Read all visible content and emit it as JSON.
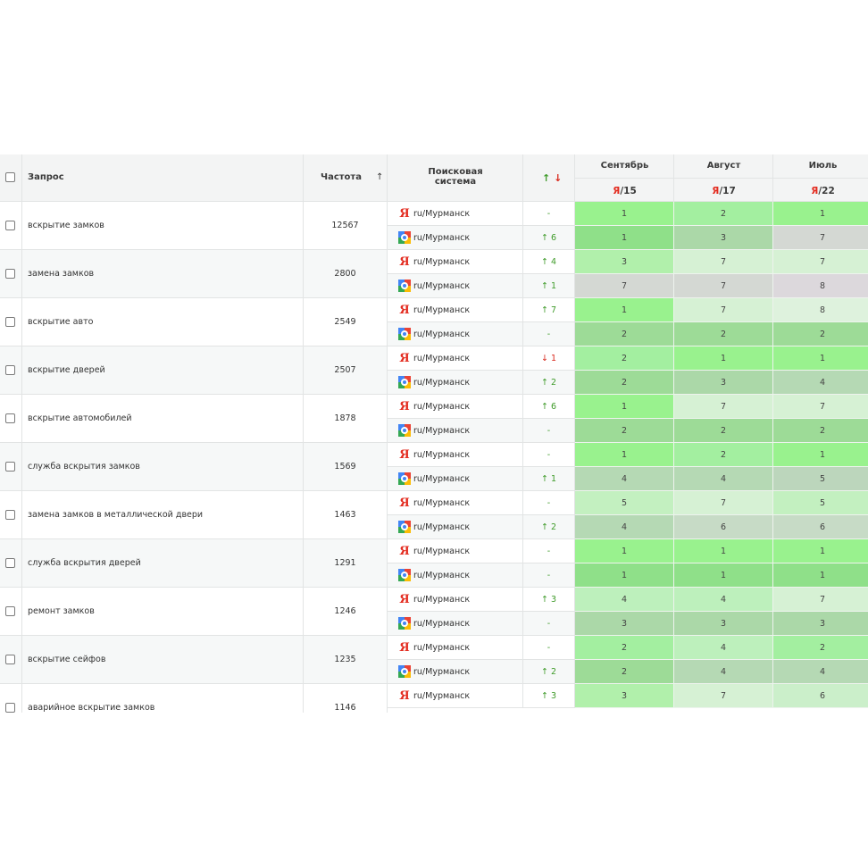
{
  "header": {
    "query": "Запрос",
    "frequency": "Частота",
    "freq_sort_arrow": "↑",
    "search_engine": "Поисковая система",
    "change_up": "↑",
    "change_down": "↓",
    "months": [
      {
        "name": "Сентябрь",
        "ya_logo": "Я",
        "value": "/15"
      },
      {
        "name": "Август",
        "ya_logo": "Я",
        "value": "/17"
      },
      {
        "name": "Июль",
        "ya_logo": "Я",
        "value": "/22"
      }
    ]
  },
  "colors": {
    "yandex_red": "#e32b1f",
    "up_green": "#3f9b2a",
    "down_red": "#d8281c",
    "pos1_light": "#99f28e",
    "pos1_dark": "#8fe089"
  },
  "rows": [
    {
      "query": "вскрытие замков",
      "freq": "12567",
      "engines": [
        {
          "type": "yandex",
          "region": "ru/Мурманск",
          "change": "-",
          "dir": "none",
          "pos": [
            "1",
            "2",
            "1"
          ]
        },
        {
          "type": "google",
          "region": "ru/Мурманск",
          "change": "↑ 6",
          "dir": "up",
          "pos": [
            "1",
            "3",
            "7"
          ]
        }
      ]
    },
    {
      "query": "замена замков",
      "freq": "2800",
      "engines": [
        {
          "type": "yandex",
          "region": "ru/Мурманск",
          "change": "↑ 4",
          "dir": "up",
          "pos": [
            "3",
            "7",
            "7"
          ]
        },
        {
          "type": "google",
          "region": "ru/Мурманск",
          "change": "↑ 1",
          "dir": "up",
          "pos": [
            "7",
            "7",
            "8"
          ]
        }
      ]
    },
    {
      "query": "вскрытие авто",
      "freq": "2549",
      "engines": [
        {
          "type": "yandex",
          "region": "ru/Мурманск",
          "change": "↑ 7",
          "dir": "up",
          "pos": [
            "1",
            "7",
            "8"
          ]
        },
        {
          "type": "google",
          "region": "ru/Мурманск",
          "change": "-",
          "dir": "none",
          "pos": [
            "2",
            "2",
            "2"
          ]
        }
      ]
    },
    {
      "query": "вскрытие дверей",
      "freq": "2507",
      "engines": [
        {
          "type": "yandex",
          "region": "ru/Мурманск",
          "change": "↓ 1",
          "dir": "down",
          "pos": [
            "2",
            "1",
            "1"
          ]
        },
        {
          "type": "google",
          "region": "ru/Мурманск",
          "change": "↑ 2",
          "dir": "up",
          "pos": [
            "2",
            "3",
            "4"
          ]
        }
      ]
    },
    {
      "query": "вскрытие автомобилей",
      "freq": "1878",
      "engines": [
        {
          "type": "yandex",
          "region": "ru/Мурманск",
          "change": "↑ 6",
          "dir": "up",
          "pos": [
            "1",
            "7",
            "7"
          ]
        },
        {
          "type": "google",
          "region": "ru/Мурманск",
          "change": "-",
          "dir": "none",
          "pos": [
            "2",
            "2",
            "2"
          ]
        }
      ]
    },
    {
      "query": "служба вскрытия замков",
      "freq": "1569",
      "engines": [
        {
          "type": "yandex",
          "region": "ru/Мурманск",
          "change": "-",
          "dir": "none",
          "pos": [
            "1",
            "2",
            "1"
          ]
        },
        {
          "type": "google",
          "region": "ru/Мурманск",
          "change": "↑ 1",
          "dir": "up",
          "pos": [
            "4",
            "4",
            "5"
          ]
        }
      ]
    },
    {
      "query": "замена замков в металлической двери",
      "freq": "1463",
      "engines": [
        {
          "type": "yandex",
          "region": "ru/Мурманск",
          "change": "-",
          "dir": "none",
          "pos": [
            "5",
            "7",
            "5"
          ]
        },
        {
          "type": "google",
          "region": "ru/Мурманск",
          "change": "↑ 2",
          "dir": "up",
          "pos": [
            "4",
            "6",
            "6"
          ]
        }
      ]
    },
    {
      "query": "служба вскрытия дверей",
      "freq": "1291",
      "engines": [
        {
          "type": "yandex",
          "region": "ru/Мурманск",
          "change": "-",
          "dir": "none",
          "pos": [
            "1",
            "1",
            "1"
          ]
        },
        {
          "type": "google",
          "region": "ru/Мурманск",
          "change": "-",
          "dir": "none",
          "pos": [
            "1",
            "1",
            "1"
          ]
        }
      ]
    },
    {
      "query": "ремонт замков",
      "freq": "1246",
      "engines": [
        {
          "type": "yandex",
          "region": "ru/Мурманск",
          "change": "↑ 3",
          "dir": "up",
          "pos": [
            "4",
            "4",
            "7"
          ]
        },
        {
          "type": "google",
          "region": "ru/Мурманск",
          "change": "-",
          "dir": "none",
          "pos": [
            "3",
            "3",
            "3"
          ]
        }
      ]
    },
    {
      "query": "вскрытие сейфов",
      "freq": "1235",
      "engines": [
        {
          "type": "yandex",
          "region": "ru/Мурманск",
          "change": "-",
          "dir": "none",
          "pos": [
            "2",
            "4",
            "2"
          ]
        },
        {
          "type": "google",
          "region": "ru/Мурманск",
          "change": "↑ 2",
          "dir": "up",
          "pos": [
            "2",
            "4",
            "4"
          ]
        }
      ]
    },
    {
      "query": "аварийное вскрытие замков",
      "freq": "1146",
      "engines": [
        {
          "type": "yandex",
          "region": "ru/Мурманск",
          "change": "↑ 3",
          "dir": "up",
          "pos": [
            "3",
            "7",
            "6"
          ]
        }
      ]
    }
  ]
}
